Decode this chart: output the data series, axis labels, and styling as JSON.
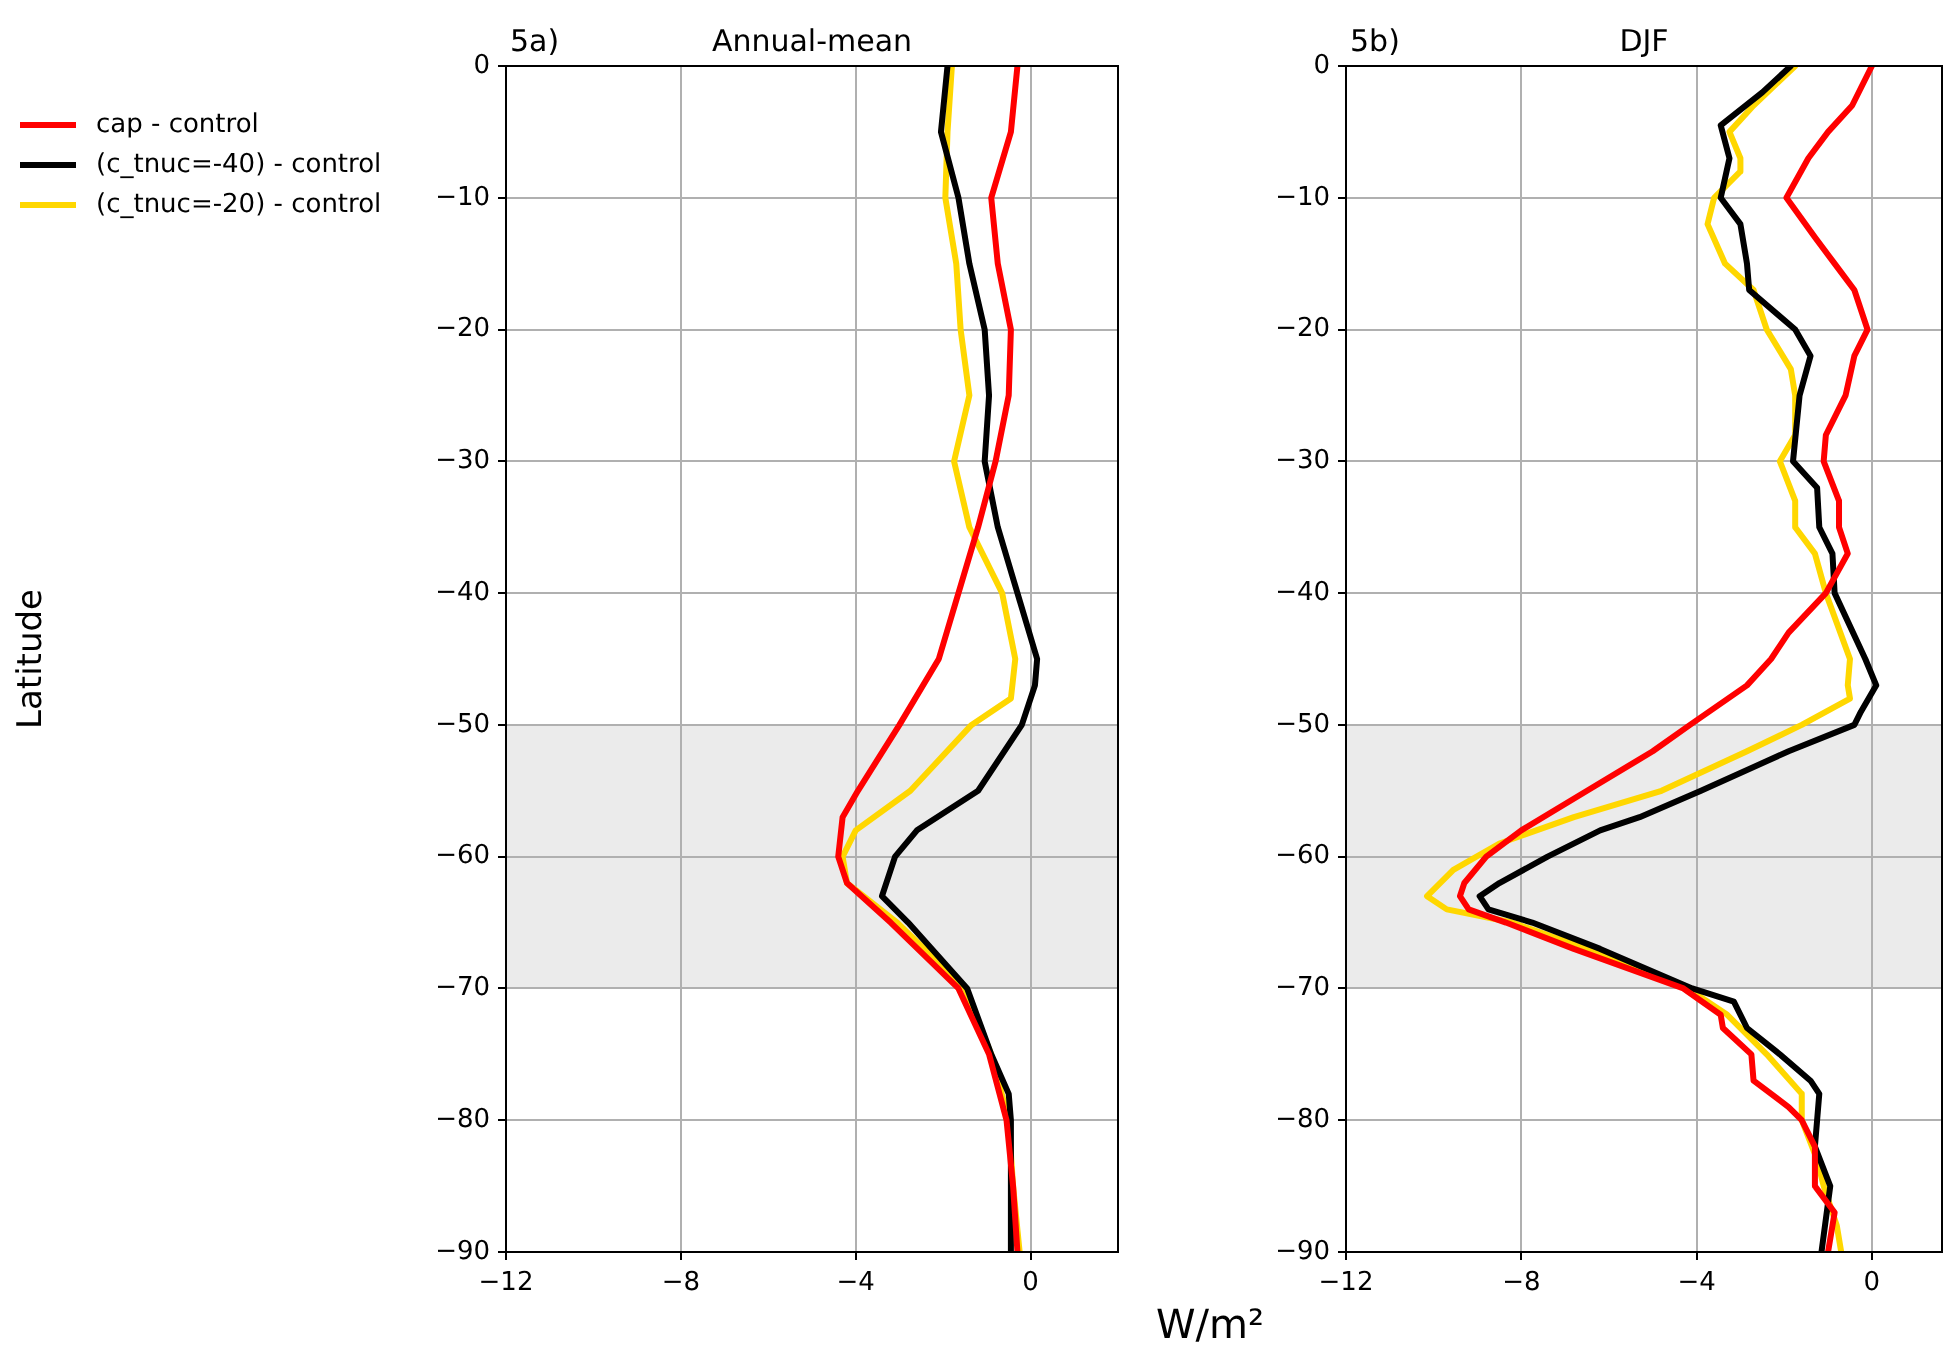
{
  "chart_data": [
    {
      "type": "line",
      "title": "Annual-mean",
      "annotations": [
        "5a)"
      ],
      "xlabel": "W/m²",
      "ylabel": "Latitude",
      "xlim": [
        -12,
        2
      ],
      "ylim": [
        -90,
        0
      ],
      "xticks": [
        {
          "value": -12,
          "label": "−12"
        },
        {
          "value": -8,
          "label": "−8"
        },
        {
          "value": -4,
          "label": "−4"
        },
        0
      ],
      "yticks": [
        0,
        {
          "value": -10,
          "label": "−10"
        },
        {
          "value": -20,
          "label": "−20"
        },
        {
          "value": -30,
          "label": "−30"
        },
        {
          "value": -40,
          "label": "−40"
        },
        {
          "value": -50,
          "label": "−50"
        },
        {
          "value": -60,
          "label": "−60"
        },
        {
          "value": -70,
          "label": "−70"
        },
        {
          "value": -80,
          "label": "−80"
        },
        {
          "value": -90,
          "label": "−90"
        }
      ],
      "grid": true,
      "legend": "top left",
      "line_style": "solid",
      "bands": [
        {
          "axis": "y",
          "from": -70,
          "to": -50,
          "color": "#ebebeb"
        }
      ],
      "series": [
        {
          "name": "cap - control",
          "color": "#ff0000",
          "x": [
            -0.3,
            -0.45,
            -0.9,
            -0.75,
            -0.45,
            -0.5,
            -0.8,
            -1.2,
            -1.65,
            -2.1,
            -3.0,
            -3.95,
            -4.3,
            -4.4,
            -4.2,
            -3.2,
            -1.65,
            -0.95,
            -0.55,
            -0.4,
            -0.3
          ],
          "values": [
            0,
            -5,
            -10,
            -15,
            -20,
            -25,
            -30,
            -35,
            -40,
            -45,
            -50,
            -55,
            -57,
            -60,
            -62,
            -65,
            -70,
            -75,
            -80,
            -85,
            -90
          ]
        },
        {
          "name": "(c_tnuc=-40) - control",
          "color": "#000000",
          "x": [
            -1.9,
            -2.05,
            -1.65,
            -1.4,
            -1.05,
            -0.95,
            -1.05,
            -0.75,
            -0.3,
            0.15,
            0.1,
            -0.2,
            -1.2,
            -2.6,
            -3.1,
            -3.4,
            -2.8,
            -1.45,
            -0.9,
            -0.5,
            -0.45,
            -0.45
          ],
          "values": [
            0,
            -5,
            -10,
            -15,
            -20,
            -25,
            -30,
            -35,
            -40,
            -45,
            -47,
            -50,
            -55,
            -58,
            -60,
            -63,
            -65,
            -70,
            -75,
            -78,
            -80,
            -90
          ]
        },
        {
          "name": "(c_tnuc=-20) - control",
          "color": "#ffd700",
          "x": [
            -1.8,
            -1.9,
            -1.95,
            -1.7,
            -1.6,
            -1.4,
            -1.75,
            -1.4,
            -0.65,
            -0.35,
            -0.45,
            -1.35,
            -2.75,
            -4.0,
            -4.3,
            -4.2,
            -3.05,
            -1.5,
            -0.9,
            -0.5,
            -0.4,
            -0.25
          ],
          "values": [
            0,
            -5,
            -10,
            -15,
            -20,
            -25,
            -30,
            -35,
            -40,
            -45,
            -48,
            -50,
            -55,
            -58,
            -60,
            -62,
            -65,
            -70,
            -75,
            -80,
            -85,
            -90
          ]
        }
      ]
    },
    {
      "type": "line",
      "title": "DJF",
      "annotations": [
        "5b)"
      ],
      "xlim": [
        -12,
        1.6
      ],
      "ylim": [
        -90,
        0
      ],
      "xticks": [
        {
          "value": -12,
          "label": "−12"
        },
        {
          "value": -8,
          "label": "−8"
        },
        {
          "value": -4,
          "label": "−4"
        },
        0
      ],
      "yticks": [
        0,
        {
          "value": -10,
          "label": "−10"
        },
        {
          "value": -20,
          "label": "−20"
        },
        {
          "value": -30,
          "label": "−30"
        },
        {
          "value": -40,
          "label": "−40"
        },
        {
          "value": -50,
          "label": "−50"
        },
        {
          "value": -60,
          "label": "−60"
        },
        {
          "value": -70,
          "label": "−70"
        },
        {
          "value": -80,
          "label": "−80"
        },
        {
          "value": -90,
          "label": "−90"
        }
      ],
      "grid": true,
      "line_style": "solid",
      "bands": [
        {
          "axis": "y",
          "from": -70,
          "to": -50,
          "color": "#ebebeb"
        }
      ],
      "series": [
        {
          "color": "#ff0000",
          "x": [
            0,
            -0.45,
            -1.0,
            -1.45,
            -1.95,
            -1.3,
            -0.85,
            -0.4,
            -0.1,
            -0.4,
            -0.6,
            -1.05,
            -1.1,
            -0.75,
            -0.75,
            -0.55,
            -1.05,
            -1.9,
            -2.3,
            -2.85,
            -4.15,
            -5.0,
            -6.5,
            -8.0,
            -8.8,
            -9.3,
            -9.4,
            -9.2,
            -8.35,
            -6.8,
            -4.3,
            -3.45,
            -3.4,
            -2.75,
            -2.7,
            -1.9,
            -1.6,
            -1.3,
            -1.3,
            -0.85,
            -1.0
          ],
          "values": [
            0,
            -3,
            -5,
            -7,
            -10,
            -13,
            -15,
            -17,
            -20,
            -22,
            -25,
            -28,
            -30,
            -33,
            -35,
            -37,
            -40,
            -43,
            -45,
            -47,
            -50,
            -52,
            -55,
            -58,
            -60,
            -62,
            -63,
            -64,
            -65,
            -67,
            -70,
            -72,
            -73,
            -75,
            -77,
            -79,
            -80,
            -82,
            -85,
            -87,
            -90
          ]
        },
        {
          "color": "#000000",
          "x": [
            -1.85,
            -2.5,
            -3.45,
            -3.25,
            -3.45,
            -3.0,
            -2.85,
            -2.8,
            -1.75,
            -1.4,
            -1.65,
            -1.8,
            -1.25,
            -1.2,
            -0.9,
            -0.85,
            -0.15,
            0.1,
            -0.25,
            -0.4,
            -1.9,
            -3.9,
            -5.3,
            -6.2,
            -7.4,
            -8.5,
            -8.95,
            -8.75,
            -7.75,
            -6.2,
            -4.1,
            -3.15,
            -2.85,
            -2.1,
            -1.4,
            -1.2,
            -1.25,
            -1.3,
            -0.95,
            -1.15
          ],
          "values": [
            0,
            -2,
            -4.5,
            -7,
            -10,
            -12,
            -15,
            -17,
            -20,
            -22,
            -25,
            -30,
            -32,
            -35,
            -37,
            -40,
            -45,
            -47,
            -49,
            -50,
            -52,
            -55,
            -57,
            -58,
            -60,
            -62,
            -63,
            -64,
            -65,
            -67,
            -70,
            -71,
            -73,
            -75,
            -77,
            -78,
            -80,
            -82,
            -85,
            -90
          ]
        },
        {
          "color": "#ffd700",
          "x": [
            -1.75,
            -2.7,
            -3.25,
            -3.0,
            -3.0,
            -3.6,
            -3.75,
            -3.35,
            -2.7,
            -2.4,
            -1.85,
            -1.75,
            -1.75,
            -2.1,
            -1.75,
            -1.75,
            -1.3,
            -1.05,
            -0.5,
            -0.55,
            -0.5,
            -1.6,
            -2.85,
            -4.8,
            -6.8,
            -8.5,
            -9.55,
            -10.15,
            -9.7,
            -8.2,
            -6.5,
            -4.2,
            -3.3,
            -2.4,
            -1.6,
            -1.6,
            -1.25,
            -1.1,
            -0.8,
            -0.7
          ],
          "values": [
            0,
            -3,
            -5,
            -7,
            -8,
            -10,
            -12,
            -15,
            -17,
            -20,
            -23,
            -25,
            -28,
            -30,
            -33,
            -35,
            -37,
            -40,
            -45,
            -47,
            -48,
            -50,
            -52,
            -55,
            -57,
            -59,
            -61,
            -63,
            -64,
            -65,
            -67,
            -70,
            -72,
            -75,
            -78,
            -80,
            -83,
            -85,
            -88,
            -90
          ]
        }
      ]
    }
  ]
}
